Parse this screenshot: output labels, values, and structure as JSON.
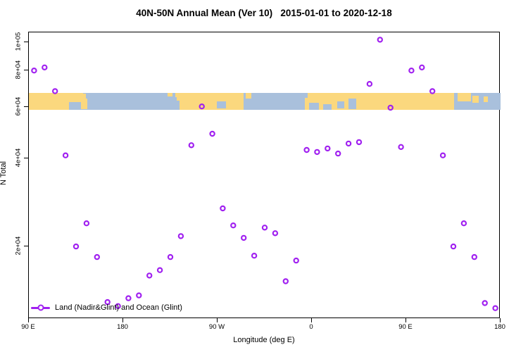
{
  "title": "40N-50N Annual Mean (Ver 10)   2015-01-01 to 2020-12-18",
  "legend": {
    "label": "Land (Nadir&Glint) and Ocean (Glint)"
  },
  "colors": {
    "marker": "#A020F0",
    "land": "#FBD87E",
    "ocean": "#A9C0DC",
    "frame": "#000000"
  },
  "chart_data": {
    "type": "scatter",
    "title": "40N-50N Annual Mean (Ver 10)   2015-01-01 to 2020-12-18",
    "xlabel": "Longitude (deg E)",
    "ylabel": "N Total",
    "x_range_deg_east": [
      90,
      540
    ],
    "y_scale": "log10",
    "y_range": [
      11500,
      110000
    ],
    "grid": false,
    "legend_position": "bottom-left",
    "x_ticks": [
      {
        "deg": 90,
        "label": "90 E"
      },
      {
        "deg": 180,
        "label": "180"
      },
      {
        "deg": 270,
        "label": "90 W"
      },
      {
        "deg": 360,
        "label": "0"
      },
      {
        "deg": 450,
        "label": "90 E"
      },
      {
        "deg": 540,
        "label": "180"
      }
    ],
    "y_ticks": [
      {
        "value": 100000,
        "label": "1e+05"
      },
      {
        "value": 80000,
        "label": "8e+04"
      },
      {
        "value": 60000,
        "label": "6e+04"
      },
      {
        "value": 40000,
        "label": "4e+04"
      },
      {
        "value": 20000,
        "label": "2e+04"
      }
    ],
    "series": [
      {
        "name": "Land (Nadir&Glint) and Ocean (Glint)",
        "marker": "open-circle",
        "points": [
          {
            "lon": 95,
            "n": 80000
          },
          {
            "lon": 105,
            "n": 82000
          },
          {
            "lon": 115,
            "n": 68000
          },
          {
            "lon": 125,
            "n": 41000
          },
          {
            "lon": 135,
            "n": 20000
          },
          {
            "lon": 145,
            "n": 24000
          },
          {
            "lon": 155,
            "n": 18400
          },
          {
            "lon": 165,
            "n": 12900
          },
          {
            "lon": 175,
            "n": 12500
          },
          {
            "lon": 185,
            "n": 13300
          },
          {
            "lon": 195,
            "n": 13600
          },
          {
            "lon": 205,
            "n": 15900
          },
          {
            "lon": 215,
            "n": 16600
          },
          {
            "lon": 225,
            "n": 18400
          },
          {
            "lon": 235,
            "n": 21700
          },
          {
            "lon": 245,
            "n": 44400
          },
          {
            "lon": 255,
            "n": 60300
          },
          {
            "lon": 265,
            "n": 48600
          },
          {
            "lon": 275,
            "n": 27000
          },
          {
            "lon": 285,
            "n": 23600
          },
          {
            "lon": 295,
            "n": 21400
          },
          {
            "lon": 305,
            "n": 18600
          },
          {
            "lon": 315,
            "n": 23200
          },
          {
            "lon": 325,
            "n": 22200
          },
          {
            "lon": 335,
            "n": 15200
          },
          {
            "lon": 345,
            "n": 17900
          },
          {
            "lon": 355,
            "n": 42800
          },
          {
            "lon": 365,
            "n": 42100
          },
          {
            "lon": 375,
            "n": 43300
          },
          {
            "lon": 385,
            "n": 41600
          },
          {
            "lon": 395,
            "n": 45000
          },
          {
            "lon": 405,
            "n": 45500
          },
          {
            "lon": 415,
            "n": 72000
          },
          {
            "lon": 425,
            "n": 102000
          },
          {
            "lon": 435,
            "n": 59700
          },
          {
            "lon": 445,
            "n": 43800
          },
          {
            "lon": 455,
            "n": 80000
          },
          {
            "lon": 465,
            "n": 82000
          },
          {
            "lon": 475,
            "n": 68000
          },
          {
            "lon": 485,
            "n": 41000
          },
          {
            "lon": 495,
            "n": 20000
          },
          {
            "lon": 505,
            "n": 24000
          },
          {
            "lon": 515,
            "n": 18400
          },
          {
            "lon": 525,
            "n": 12800
          },
          {
            "lon": 535,
            "n": 12300
          }
        ]
      }
    ]
  },
  "map_band": {
    "description": "40N-50N latitude strip, longitudes 90E to 540 (wrapped)",
    "value_span": [
      58700,
      67000
    ],
    "segments": [
      {
        "t": "land",
        "d0": 90,
        "d1": 142,
        "f0": 0,
        "f1": 1
      },
      {
        "t": "ocean",
        "d0": 128,
        "d1": 142,
        "f0": 0.55,
        "f1": 1
      },
      {
        "t": "land",
        "d0": 140,
        "d1": 146,
        "f0": 0.35,
        "f1": 0.95
      },
      {
        "t": "land",
        "d0": 141,
        "d1": 144.5,
        "f0": 0.05,
        "f1": 0.5
      },
      {
        "t": "land",
        "d0": 222,
        "d1": 227,
        "f0": 0,
        "f1": 0.2
      },
      {
        "t": "land",
        "d0": 230,
        "d1": 236,
        "f0": 0,
        "f1": 0.25
      },
      {
        "t": "land",
        "d0": 231,
        "d1": 235,
        "f0": 0,
        "f1": 0.45
      },
      {
        "t": "land",
        "d0": 234,
        "d1": 295,
        "f0": 0,
        "f1": 1
      },
      {
        "t": "ocean",
        "d0": 269,
        "d1": 278,
        "f0": 0.5,
        "f1": 0.9
      },
      {
        "t": "land",
        "d0": 297,
        "d1": 302,
        "f0": 0,
        "f1": 0.35
      },
      {
        "t": "land",
        "d0": 353,
        "d1": 496,
        "f0": 0,
        "f1": 1
      },
      {
        "t": "ocean",
        "d0": 353,
        "d1": 356,
        "f0": 0,
        "f1": 0.3
      },
      {
        "t": "ocean",
        "d0": 357,
        "d1": 367,
        "f0": 0.6,
        "f1": 1
      },
      {
        "t": "ocean",
        "d0": 371,
        "d1": 379,
        "f0": 0.65,
        "f1": 1
      },
      {
        "t": "ocean",
        "d0": 384,
        "d1": 391,
        "f0": 0.5,
        "f1": 0.92
      },
      {
        "t": "ocean",
        "d0": 395,
        "d1": 402,
        "f0": 0.35,
        "f1": 0.95
      },
      {
        "t": "land",
        "d0": 499,
        "d1": 512,
        "f0": 0,
        "f1": 0.5
      },
      {
        "t": "land",
        "d0": 513,
        "d1": 519,
        "f0": 0.15,
        "f1": 0.6
      },
      {
        "t": "land",
        "d0": 524,
        "d1": 528,
        "f0": 0.2,
        "f1": 0.55
      }
    ]
  }
}
